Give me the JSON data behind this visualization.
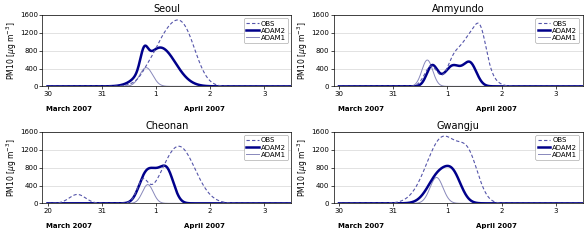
{
  "titles": [
    "Seoul",
    "Anmyundo",
    "Cheonan",
    "Gwangju"
  ],
  "ylim": [
    0,
    1600
  ],
  "yticks": [
    0,
    400,
    800,
    1200,
    1600
  ],
  "obs_color": "#5555aa",
  "adam2_color": "#00008b",
  "adam1_color": "#8888bb",
  "adam2_lw": 1.8,
  "adam1_lw": 0.7,
  "obs_lw": 0.8,
  "title_fontsize": 7,
  "legend_fontsize": 5,
  "tick_fontsize": 5,
  "axis_label_fontsize": 5.5,
  "xlabel_march": "March 2007",
  "xlabel_april": "April 2007"
}
